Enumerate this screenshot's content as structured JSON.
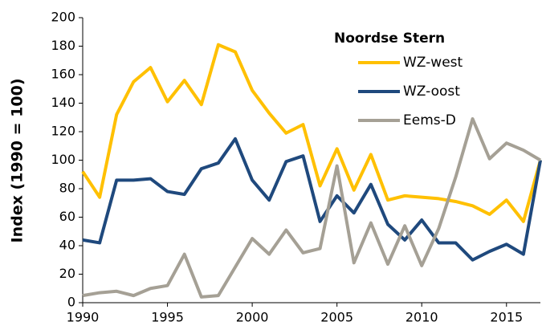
{
  "chart_data": {
    "type": "line",
    "y_label": "Index (1990 = 100)",
    "legend_title": "Noordse Stern",
    "x": [
      1990,
      1991,
      1992,
      1993,
      1994,
      1995,
      1996,
      1997,
      1998,
      1999,
      2000,
      2001,
      2002,
      2003,
      2004,
      2005,
      2006,
      2007,
      2008,
      2009,
      2010,
      2011,
      2012,
      2013,
      2014,
      2015,
      2016,
      2017
    ],
    "series": [
      {
        "name": "WZ-west",
        "color": "#ffc000",
        "values": [
          92,
          74,
          132,
          155,
          165,
          141,
          156,
          139,
          181,
          176,
          149,
          133,
          119,
          125,
          82,
          108,
          79,
          104,
          72,
          75,
          74,
          73,
          71,
          68,
          62,
          72,
          57,
          100
        ]
      },
      {
        "name": "WZ-oost",
        "color": "#1f497d",
        "values": [
          44,
          42,
          86,
          86,
          87,
          78,
          76,
          94,
          98,
          115,
          86,
          72,
          99,
          103,
          57,
          75,
          63,
          83,
          55,
          44,
          58,
          42,
          42,
          30,
          36,
          41,
          34,
          100
        ]
      },
      {
        "name": "Eems-D",
        "color": "#a5a095",
        "values": [
          5,
          7,
          8,
          5,
          10,
          12,
          34,
          4,
          5,
          25,
          45,
          34,
          51,
          35,
          38,
          96,
          28,
          56,
          27,
          54,
          26,
          52,
          88,
          129,
          101,
          112,
          107,
          100
        ]
      }
    ],
    "xlim": [
      1990,
      2017
    ],
    "xticks": [
      1990,
      1995,
      2000,
      2005,
      2010,
      2015
    ],
    "ylim": [
      0,
      200
    ],
    "yticks": [
      0,
      20,
      40,
      60,
      80,
      100,
      120,
      140,
      160,
      180,
      200
    ],
    "grid": false,
    "legend": "upper right"
  }
}
